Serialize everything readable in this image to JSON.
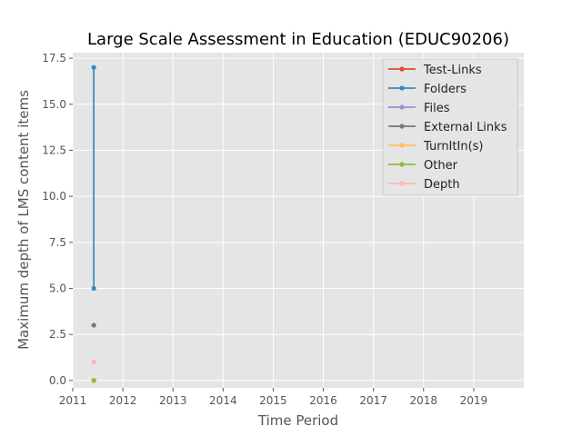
{
  "chart_data": {
    "type": "line",
    "title": "Large Scale Assessment in Education (EDUC90206)",
    "xlabel": "Time Period",
    "ylabel": "Maximum depth of LMS content items",
    "xlim": [
      2011,
      2020
    ],
    "ylim": [
      -0.4,
      17.8
    ],
    "xticks": [
      2011,
      2012,
      2013,
      2014,
      2015,
      2016,
      2017,
      2018,
      2019
    ],
    "yticks": [
      0.0,
      2.5,
      5.0,
      7.5,
      10.0,
      12.5,
      15.0,
      17.5
    ],
    "ytick_labels": [
      "0.0",
      "2.5",
      "5.0",
      "7.5",
      "10.0",
      "12.5",
      "15.0",
      "17.5"
    ],
    "grid": true,
    "legend_position": "top-right",
    "series": [
      {
        "name": "Test-Links",
        "color": "#E24A33",
        "points": [
          [
            2011.42,
            0
          ]
        ]
      },
      {
        "name": "Folders",
        "color": "#348ABD",
        "points": [
          [
            2011.42,
            5
          ],
          [
            2011.42,
            17
          ]
        ]
      },
      {
        "name": "Files",
        "color": "#988ED5",
        "points": [
          [
            2011.42,
            0
          ]
        ]
      },
      {
        "name": "External Links",
        "color": "#777777",
        "points": [
          [
            2011.42,
            3
          ]
        ]
      },
      {
        "name": "TurnItIn(s)",
        "color": "#FBC15E",
        "points": [
          [
            2011.42,
            0
          ]
        ]
      },
      {
        "name": "Other",
        "color": "#8EBA42",
        "points": [
          [
            2011.42,
            0
          ]
        ]
      },
      {
        "name": "Depth",
        "color": "#FFB5B8",
        "points": [
          [
            2011.42,
            1
          ]
        ]
      }
    ]
  }
}
